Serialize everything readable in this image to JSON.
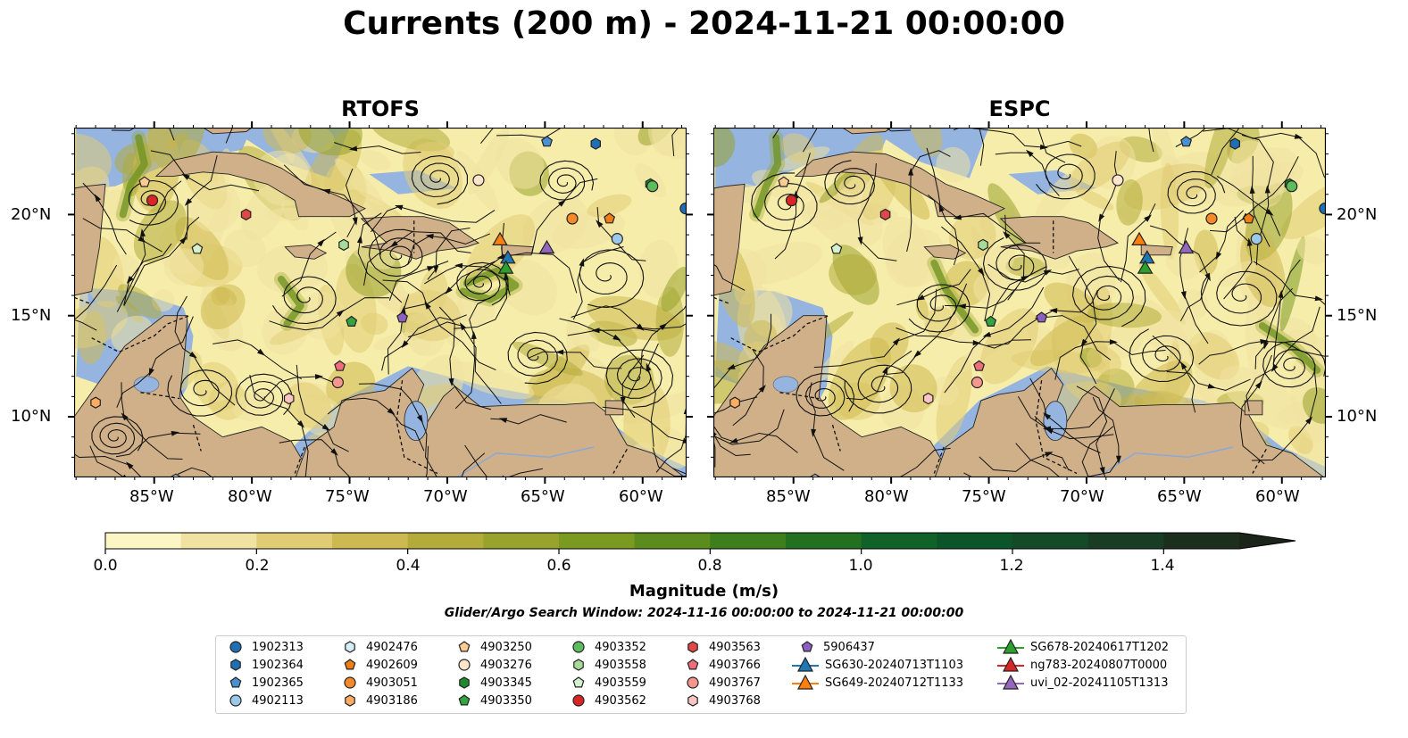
{
  "title": "Currents (200 m) - 2024-11-21 00:00:00",
  "panels": [
    {
      "id": "rtofs",
      "title": "RTOFS"
    },
    {
      "id": "espc",
      "title": "ESPC"
    }
  ],
  "axes": {
    "lon_ticks": [
      "85°W",
      "80°W",
      "75°W",
      "70°W",
      "65°W",
      "60°W"
    ],
    "lat_ticks": [
      "20°N",
      "15°N",
      "10°N"
    ]
  },
  "colorbar": {
    "label": "Magnitude (m/s)",
    "ticks": [
      "0.0",
      "0.2",
      "0.4",
      "0.6",
      "0.8",
      "1.0",
      "1.2",
      "1.4"
    ],
    "colors": [
      "#fcf6c4",
      "#f0e2a0",
      "#e0cc74",
      "#cdb951",
      "#b3ab3a",
      "#98a22c",
      "#7b9a22",
      "#5c8c1e",
      "#3f7e1d",
      "#237020",
      "#116229",
      "#0c5429",
      "#144a28",
      "#193c24",
      "#1c2f1c",
      "#1a2418"
    ]
  },
  "search_window": "Glider/Argo Search Window: 2024-11-16 00:00:00 to 2024-11-21 00:00:00",
  "legend": {
    "items": [
      {
        "label": "1902313",
        "shape": "circle",
        "color": "#1f6fb5"
      },
      {
        "label": "1902364",
        "shape": "hexagon",
        "color": "#1f6fb5"
      },
      {
        "label": "1902365",
        "shape": "pentagon",
        "color": "#4a90d0"
      },
      {
        "label": "4902113",
        "shape": "circle",
        "color": "#9cc8ea"
      },
      {
        "label": "4902476",
        "shape": "hexagon",
        "color": "#d6ecf7"
      },
      {
        "label": "4902609",
        "shape": "pentagon",
        "color": "#f07d16"
      },
      {
        "label": "4903051",
        "shape": "circle",
        "color": "#f58a2a"
      },
      {
        "label": "4903186",
        "shape": "hexagon",
        "color": "#fbad64"
      },
      {
        "label": "4903250",
        "shape": "pentagon",
        "color": "#fccb94"
      },
      {
        "label": "4903276",
        "shape": "circle",
        "color": "#fde4cc"
      },
      {
        "label": "4903345",
        "shape": "hexagon",
        "color": "#1e8a2c"
      },
      {
        "label": "4903350",
        "shape": "pentagon",
        "color": "#33a43f"
      },
      {
        "label": "4903352",
        "shape": "circle",
        "color": "#5dbc5e"
      },
      {
        "label": "4903558",
        "shape": "hexagon",
        "color": "#a6dc98"
      },
      {
        "label": "4903559",
        "shape": "pentagon",
        "color": "#d5f0cc"
      },
      {
        "label": "4903562",
        "shape": "circle",
        "color": "#d92526"
      },
      {
        "label": "4903563",
        "shape": "hexagon",
        "color": "#e04747"
      },
      {
        "label": "4903766",
        "shape": "pentagon",
        "color": "#ee6d78"
      },
      {
        "label": "4903767",
        "shape": "circle",
        "color": "#f5968f"
      },
      {
        "label": "4903768",
        "shape": "hexagon",
        "color": "#fbc6c1"
      },
      {
        "label": "5906437",
        "shape": "pentagon",
        "color": "#8c5fc0"
      },
      {
        "label": "SG630-20240713T1103",
        "shape": "triangle",
        "color": "#1f77b4"
      },
      {
        "label": "SG649-20240712T1133",
        "shape": "triangle",
        "color": "#ff7f0e"
      },
      {
        "label": "SG678-20240617T1202",
        "shape": "triangle",
        "color": "#2ca02c"
      },
      {
        "label": "ng783-20240807T0000",
        "shape": "triangle",
        "color": "#d62728"
      },
      {
        "label": "uvi_02-20241105T1313",
        "shape": "triangle",
        "color": "#9467bd"
      }
    ]
  }
}
